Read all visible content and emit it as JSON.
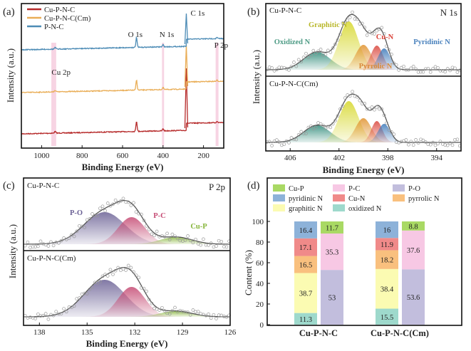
{
  "chart_data": [
    {
      "panel": "(a)",
      "type": "line",
      "title": "",
      "xlabel": "Binding Energy (eV)",
      "ylabel": "Intensity (a.u.)",
      "xlim": [
        1100,
        100
      ],
      "xticks": [
        1000,
        800,
        600,
        400,
        200
      ],
      "series": [
        {
          "name": "Cu-P-N-C",
          "color": "#b62a2a"
        },
        {
          "name": "Cu-P-N-C(Cm)",
          "color": "#e9ad56"
        },
        {
          "name": "P-N-C",
          "color": "#4d8cb6"
        }
      ],
      "peak_labels": [
        {
          "text": "O 1s",
          "x": 531
        },
        {
          "text": "N 1s",
          "x": 400
        },
        {
          "text": "C 1s",
          "x": 285
        },
        {
          "text": "P 2p",
          "x": 133
        },
        {
          "text": "Cu 2p",
          "x": 933
        }
      ],
      "highlight_bands": [
        {
          "from": 952,
          "to": 928,
          "color": "#f4c6da"
        },
        {
          "from": 405,
          "to": 395,
          "color": "#f4c6da"
        },
        {
          "from": 140,
          "to": 126,
          "color": "#f4c6da"
        }
      ]
    },
    {
      "panel": "(b)",
      "type": "area",
      "title": "N 1s",
      "xlabel": "Binding Energy (eV)",
      "ylabel": "Intensity (a.u.)",
      "xlim": [
        408,
        392
      ],
      "xticks": [
        406,
        402,
        398,
        394
      ],
      "subplots": [
        {
          "name": "Cu-P-N-C",
          "components": [
            {
              "name": "Oxidized N",
              "center": 403.8,
              "color": "#2e8b79"
            },
            {
              "name": "Graphitic N",
              "center": 401.2,
              "color": "#d6d72a"
            },
            {
              "name": "Pyrrolic N",
              "center": 400.0,
              "color": "#e0922d"
            },
            {
              "name": "Cu-N",
              "center": 398.9,
              "color": "#d9443a"
            },
            {
              "name": "Pyridinic N",
              "center": 398.3,
              "color": "#3a77b8"
            }
          ]
        },
        {
          "name": "Cu-P-N-C(Cm)",
          "components": [
            {
              "name": "Oxidized N",
              "center": 403.8,
              "color": "#2e8b79"
            },
            {
              "name": "Graphitic N",
              "center": 401.2,
              "color": "#d6d72a"
            },
            {
              "name": "Pyrrolic N",
              "center": 400.0,
              "color": "#e0922d"
            },
            {
              "name": "Cu-N",
              "center": 398.9,
              "color": "#d9443a"
            },
            {
              "name": "Pyridinic N",
              "center": 398.3,
              "color": "#3a77b8"
            }
          ]
        }
      ],
      "component_labels": [
        "Graphitic N",
        "Oxidized N",
        "Cu-N",
        "Pyridinic N",
        "Pyrrolic N"
      ]
    },
    {
      "panel": "(c)",
      "type": "area",
      "title": "P 2p",
      "xlabel": "Binding Energy (eV)",
      "ylabel": "Intensity (a.u.)",
      "xlim": [
        139,
        126
      ],
      "xticks": [
        138,
        135,
        132,
        129,
        126
      ],
      "subplots": [
        {
          "name": "Cu-P-N-C",
          "components": [
            {
              "name": "P-O",
              "center": 133.9,
              "color": "#6b6195"
            },
            {
              "name": "P-C",
              "center": 132.2,
              "color": "#c54a73"
            },
            {
              "name": "Cu-P",
              "center": 129.4,
              "color": "#86b53a"
            }
          ]
        },
        {
          "name": "Cu-P-N-C(Cm)",
          "components": [
            {
              "name": "P-O",
              "center": 133.9,
              "color": "#6b6195"
            },
            {
              "name": "P-C",
              "center": 132.2,
              "color": "#c54a73"
            },
            {
              "name": "Cu-P",
              "center": 129.4,
              "color": "#86b53a"
            }
          ]
        }
      ],
      "component_labels": [
        "P-O",
        "P-C",
        "Cu-P"
      ]
    },
    {
      "panel": "(d)",
      "type": "bar",
      "stacked": true,
      "xlabel": "",
      "ylabel": "Content (%)",
      "ylim": [
        0,
        100
      ],
      "yticks": [
        0,
        20,
        40,
        60,
        80,
        100
      ],
      "categories": [
        "Cu-P-N-C",
        "Cu-P-N-C(Cm)"
      ],
      "legend": [
        {
          "name": "Cu-P",
          "color": "#a9d964"
        },
        {
          "name": "P-C",
          "color": "#f7c8e4"
        },
        {
          "name": "P-O",
          "color": "#c2bedd"
        },
        {
          "name": "pyridinic N",
          "color": "#8db2d9"
        },
        {
          "name": "Cu-N",
          "color": "#f08a89"
        },
        {
          "name": "pyrrolic N",
          "color": "#f9c07e"
        },
        {
          "name": "graphitic N",
          "color": "#fbfbb2"
        },
        {
          "name": "oxidized N",
          "color": "#9ed9cc"
        }
      ],
      "n_stack": {
        "series": [
          {
            "name": "oxidized N",
            "values": [
              11.3,
              15.5
            ]
          },
          {
            "name": "graphitic N",
            "values": [
              38.7,
              38.4
            ]
          },
          {
            "name": "pyrrolic N",
            "values": [
              16.5,
              18.2
            ]
          },
          {
            "name": "Cu-N",
            "values": [
              17.1,
              11.9
            ]
          },
          {
            "name": "pyridinic N",
            "values": [
              16.4,
              16
            ]
          }
        ]
      },
      "p_stack": {
        "series": [
          {
            "name": "P-O",
            "values": [
              53,
              53.6
            ]
          },
          {
            "name": "P-C",
            "values": [
              35.3,
              37.6
            ]
          },
          {
            "name": "Cu-P",
            "values": [
              11.7,
              8.8
            ]
          }
        ]
      }
    }
  ]
}
